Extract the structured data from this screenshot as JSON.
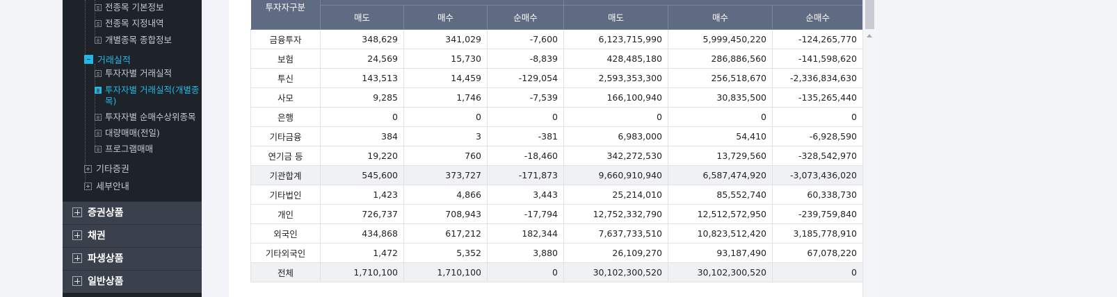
{
  "sidebar": {
    "tree": [
      {
        "label": "전종목 기본정보",
        "active": false
      },
      {
        "label": "전종목 지정내역",
        "active": false
      },
      {
        "label": "개별종목 종합정보",
        "active": false
      }
    ],
    "group_trading": {
      "label": "거래실적",
      "active": true
    },
    "trading_items": [
      {
        "label": "투자자별 거래실적",
        "active": false
      },
      {
        "label": "투자자별 거래실적(개별종목)",
        "line1": "투자자별 거래실적(개별종",
        "line2": "목)",
        "active": true
      },
      {
        "label": "투자자별 순매수상위종목",
        "active": false
      },
      {
        "label": "대량매매(전일)",
        "active": false
      },
      {
        "label": "프로그램매매",
        "active": false
      }
    ],
    "group_other": {
      "label": "기타증권"
    },
    "group_guide": {
      "label": "세부안내"
    },
    "categories": [
      "증권상품",
      "채권",
      "파생상품",
      "일반상품"
    ]
  },
  "table": {
    "header_group": "투자자구분",
    "columns": [
      "매도",
      "매수",
      "순매수",
      "매도",
      "매수",
      "순매수"
    ],
    "rows": [
      {
        "label": "금융투자",
        "cells": [
          "348,629",
          "341,029",
          "-7,600",
          "6,123,715,990",
          "5,999,450,220",
          "-124,265,770"
        ],
        "shade": false
      },
      {
        "label": "보험",
        "cells": [
          "24,569",
          "15,730",
          "-8,839",
          "428,485,180",
          "286,886,560",
          "-141,598,620"
        ],
        "shade": false
      },
      {
        "label": "투신",
        "cells": [
          "143,513",
          "14,459",
          "-129,054",
          "2,593,353,300",
          "256,518,670",
          "-2,336,834,630"
        ],
        "shade": false
      },
      {
        "label": "사모",
        "cells": [
          "9,285",
          "1,746",
          "-7,539",
          "166,100,940",
          "30,835,500",
          "-135,265,440"
        ],
        "shade": false
      },
      {
        "label": "은행",
        "cells": [
          "0",
          "0",
          "0",
          "0",
          "0",
          "0"
        ],
        "shade": false
      },
      {
        "label": "기타금융",
        "cells": [
          "384",
          "3",
          "-381",
          "6,983,000",
          "54,410",
          "-6,928,590"
        ],
        "shade": false
      },
      {
        "label": "연기금 등",
        "cells": [
          "19,220",
          "760",
          "-18,460",
          "342,272,530",
          "13,729,560",
          "-328,542,970"
        ],
        "shade": false
      },
      {
        "label": "기관합계",
        "cells": [
          "545,600",
          "373,727",
          "-171,873",
          "9,660,910,940",
          "6,587,474,920",
          "-3,073,436,020"
        ],
        "shade": true
      },
      {
        "label": "기타법인",
        "cells": [
          "1,423",
          "4,866",
          "3,443",
          "25,214,010",
          "85,552,740",
          "60,338,730"
        ],
        "shade": false
      },
      {
        "label": "개인",
        "cells": [
          "726,737",
          "708,943",
          "-17,794",
          "12,752,332,790",
          "12,512,572,950",
          "-239,759,840"
        ],
        "shade": false
      },
      {
        "label": "외국인",
        "cells": [
          "434,868",
          "617,212",
          "182,344",
          "7,637,733,510",
          "10,823,512,420",
          "3,185,778,910"
        ],
        "shade": false
      },
      {
        "label": "기타외국인",
        "cells": [
          "1,472",
          "5,352",
          "3,880",
          "26,109,270",
          "93,187,490",
          "67,078,220"
        ],
        "shade": false
      },
      {
        "label": "전체",
        "cells": [
          "1,710,100",
          "1,710,100",
          "0",
          "30,102,300,520",
          "30,102,300,520",
          "0"
        ],
        "shade": true
      }
    ]
  },
  "colors": {
    "sidebar_bg": "#1e2229",
    "accent": "#21b8e8",
    "table_header": "#5f6b82",
    "category_bg": "#3b414c"
  }
}
